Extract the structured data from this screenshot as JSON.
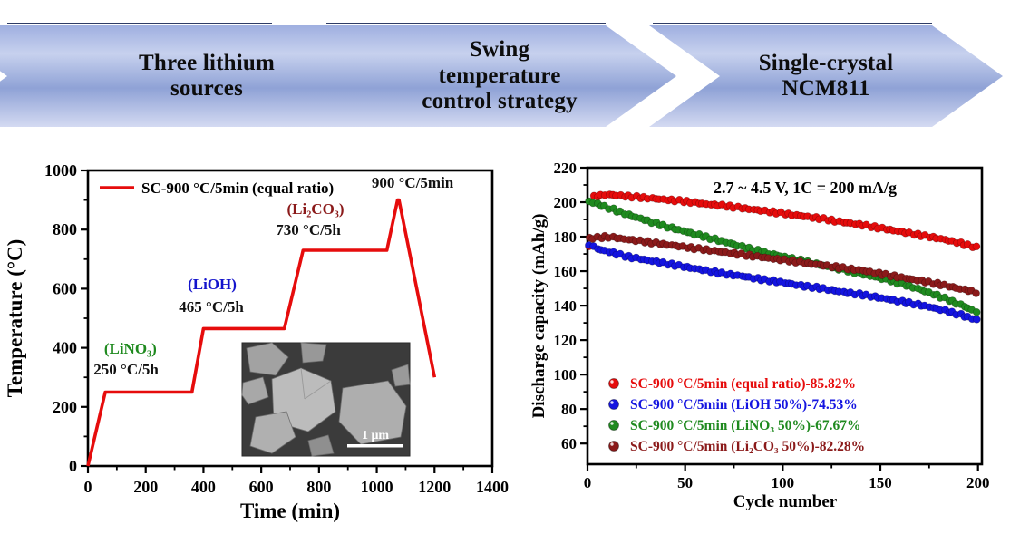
{
  "banners": [
    {
      "label": "Three lithium\nsources"
    },
    {
      "label": "Swing\ntemperature\ncontrol strategy"
    },
    {
      "label": "Single-crystal\nNCM811"
    }
  ],
  "colors": {
    "accent_red": "#e60c0c",
    "accent_blue": "#1414e0",
    "accent_green": "#1f8a1f",
    "accent_dark_red": "#8b1a1a",
    "banner_blue": "#9fafe0"
  },
  "chart_data": [
    {
      "type": "line",
      "name": "temperature-profile",
      "xlabel": "Time (min)",
      "ylabel": "Temperature (°C)",
      "xlim": [
        0,
        1400
      ],
      "ylim": [
        0,
        1000
      ],
      "xticks": [
        0,
        200,
        400,
        600,
        800,
        1000,
        1200,
        1400
      ],
      "yticks": [
        0,
        200,
        400,
        600,
        800,
        1000
      ],
      "x_minor_step": 100,
      "y_minor_step": 100,
      "legend": [
        {
          "label": "SC-900 °C/5min (equal ratio)",
          "color": "#e60c0c"
        }
      ],
      "series": [
        {
          "name": "SC-900 °C/5min (equal ratio)",
          "color": "#e60c0c",
          "points": [
            [
              0,
              0
            ],
            [
              60,
              250
            ],
            [
              360,
              250
            ],
            [
              400,
              465
            ],
            [
              680,
              465
            ],
            [
              745,
              730
            ],
            [
              1035,
              730
            ],
            [
              1072,
              900
            ],
            [
              1077,
              900
            ],
            [
              1200,
              300
            ]
          ]
        }
      ],
      "annotations": [
        {
          "text": "(LiNO₃)",
          "x": 147,
          "y": 380,
          "color": "#1f8a1f",
          "size": 17
        },
        {
          "text": "250 °C/5h",
          "x": 132,
          "y": 310,
          "color": "#111111",
          "size": 17
        },
        {
          "text": "(LiOH)",
          "x": 430,
          "y": 598,
          "color": "#1414cc",
          "size": 17
        },
        {
          "text": "465 °C/5h",
          "x": 427,
          "y": 521,
          "color": "#111111",
          "size": 17
        },
        {
          "text": "(Li₂CO₃)",
          "x": 788,
          "y": 852,
          "color": "#8b1a1a",
          "size": 17
        },
        {
          "text": "730 °C/5h",
          "x": 763,
          "y": 782,
          "color": "#111111",
          "size": 17
        },
        {
          "text": "900 °C/5min",
          "x": 1124,
          "y": 941,
          "color": "#111111",
          "size": 17
        }
      ],
      "inset": {
        "scale_label": "1 μm"
      }
    },
    {
      "type": "scatter",
      "name": "cycling-performance",
      "title": "2.7 ~ 4.5 V, 1C = 200 mA/g",
      "xlabel": "Cycle number",
      "ylabel": "Discharge capacity (mAh/g)",
      "xlim": [
        0,
        202
      ],
      "ylim": [
        48,
        220
      ],
      "xticks": [
        0,
        50,
        100,
        150,
        200
      ],
      "yticks": [
        60,
        80,
        100,
        120,
        140,
        160,
        180,
        200,
        220
      ],
      "x_minor_step": 25,
      "y_minor_step": 10,
      "series": [
        {
          "name": "SC-900 °C/5min (equal ratio)-85.82%",
          "color": "#e60c0c",
          "anchors": [
            [
              1,
              175
            ],
            [
              2,
              203
            ],
            [
              10,
              204.5
            ],
            [
              20,
              203.5
            ],
            [
              30,
              202.5
            ],
            [
              40,
              201.5
            ],
            [
              50,
              200.5
            ],
            [
              60,
              199
            ],
            [
              70,
              198
            ],
            [
              80,
              196.5
            ],
            [
              90,
              195
            ],
            [
              100,
              193.5
            ],
            [
              110,
              192
            ],
            [
              120,
              190.5
            ],
            [
              130,
              188.5
            ],
            [
              140,
              187
            ],
            [
              150,
              185
            ],
            [
              160,
              183
            ],
            [
              170,
              181
            ],
            [
              180,
              179
            ],
            [
              190,
              176.5
            ],
            [
              200,
              173.5
            ]
          ]
        },
        {
          "name": "SC-900 °C/5min (LiOH 50%)-74.53%",
          "color": "#1414e0",
          "anchors": [
            [
              1,
              175.5
            ],
            [
              5,
              173
            ],
            [
              10,
              171.5
            ],
            [
              20,
              168.5
            ],
            [
              30,
              166.5
            ],
            [
              40,
              164.5
            ],
            [
              50,
              162.5
            ],
            [
              60,
              160.5
            ],
            [
              70,
              158.5
            ],
            [
              80,
              157
            ],
            [
              90,
              155
            ],
            [
              100,
              153.5
            ],
            [
              110,
              151.5
            ],
            [
              120,
              150
            ],
            [
              130,
              148
            ],
            [
              140,
              146.5
            ],
            [
              150,
              144.5
            ],
            [
              160,
              142.5
            ],
            [
              170,
              140.5
            ],
            [
              180,
              138
            ],
            [
              190,
              135
            ],
            [
              200,
              131.5
            ]
          ]
        },
        {
          "name": "SC-900 °C/5min (LiNO₃ 50%)-67.67%",
          "color": "#1f8a1f",
          "anchors": [
            [
              1,
              200.5
            ],
            [
              10,
              197
            ],
            [
              20,
              193
            ],
            [
              30,
              189.5
            ],
            [
              40,
              186
            ],
            [
              50,
              183
            ],
            [
              60,
              180
            ],
            [
              70,
              177
            ],
            [
              80,
              174
            ],
            [
              90,
              171
            ],
            [
              100,
              168.5
            ],
            [
              110,
              166
            ],
            [
              120,
              163.5
            ],
            [
              130,
              161
            ],
            [
              140,
              158.5
            ],
            [
              150,
              156
            ],
            [
              160,
              153
            ],
            [
              170,
              149.5
            ],
            [
              180,
              145.5
            ],
            [
              190,
              141
            ],
            [
              200,
              136
            ]
          ]
        },
        {
          "name": "SC-900 °C/5min (Li₂CO₃ 50%)-82.28%",
          "color": "#8b1a1a",
          "anchors": [
            [
              1,
              179
            ],
            [
              10,
              180
            ],
            [
              20,
              178.5
            ],
            [
              30,
              177
            ],
            [
              40,
              175.5
            ],
            [
              50,
              174
            ],
            [
              60,
              172.5
            ],
            [
              70,
              171
            ],
            [
              80,
              169.5
            ],
            [
              90,
              168
            ],
            [
              100,
              166.5
            ],
            [
              110,
              165
            ],
            [
              120,
              163.5
            ],
            [
              130,
              162
            ],
            [
              140,
              160.5
            ],
            [
              150,
              158.5
            ],
            [
              160,
              156.5
            ],
            [
              170,
              154.5
            ],
            [
              180,
              152.5
            ],
            [
              190,
              150
            ],
            [
              200,
              147.5
            ]
          ]
        }
      ],
      "legend": [
        {
          "label": "SC-900 °C/5min (equal ratio)-85.82%",
          "color": "#e60c0c"
        },
        {
          "label": "SC-900 °C/5min (LiOH 50%)-74.53%",
          "color": "#1414e0"
        },
        {
          "label": "SC-900 °C/5min (LiNO₃ 50%)-67.67%",
          "color": "#1f8a1f"
        },
        {
          "label": "SC-900 °C/5min (Li₂CO₃ 50%)-82.28%",
          "color": "#8b1a1a"
        }
      ]
    }
  ]
}
